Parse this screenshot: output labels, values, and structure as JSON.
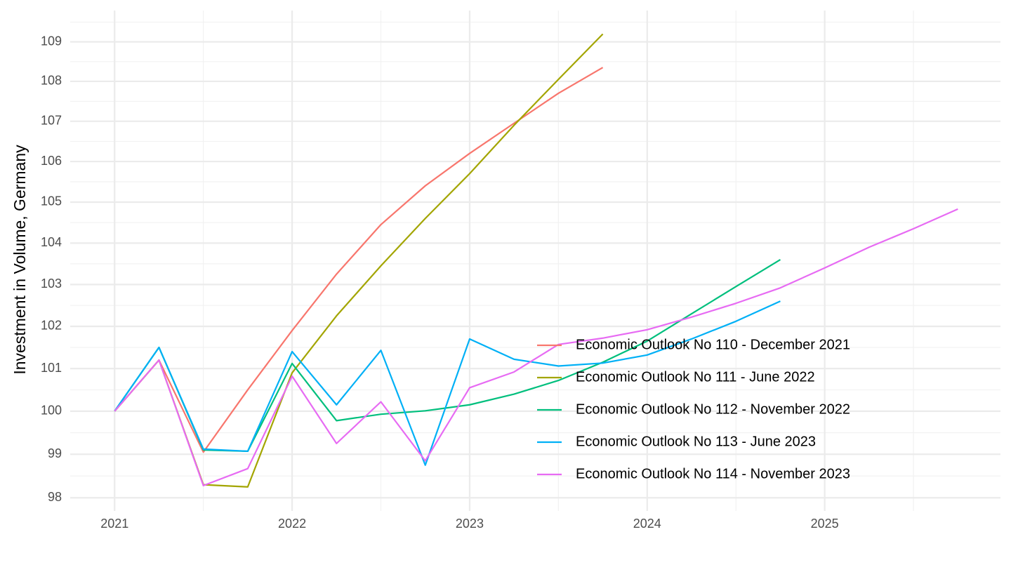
{
  "chart_data": {
    "type": "line",
    "y_label": "Investment in Volume, Germany",
    "x": [
      2021,
      2021.25,
      2021.5,
      2021.75,
      2022,
      2022.25,
      2022.5,
      2022.75,
      2023,
      2023.25,
      2023.5,
      2023.75,
      2024,
      2024.25,
      2024.5,
      2024.75,
      2025,
      2025.25,
      2025.5,
      2025.75
    ],
    "xlim": [
      2020.75,
      2025.99
    ],
    "xticks": [
      2021,
      2022,
      2023,
      2024,
      2025
    ],
    "ylim": [
      97.7,
      109.8
    ],
    "yticks": [
      98,
      99,
      100,
      101,
      102,
      103,
      104,
      105,
      106,
      107,
      108,
      109
    ],
    "log_y": true,
    "grid": true,
    "legend_position": "inside",
    "series": [
      {
        "name": "Economic Outlook No 110 - December 2021",
        "color": "#F8766D",
        "values": [
          100,
          101.2,
          99.05,
          100.5,
          101.9,
          103.25,
          104.45,
          105.4,
          106.2,
          106.95,
          107.7,
          108.35,
          null,
          null,
          null,
          null,
          null,
          null,
          null,
          null
        ]
      },
      {
        "name": "Economic Outlook No 111 - June 2022",
        "color": "#A3A500",
        "values": [
          100,
          101.2,
          98.3,
          98.25,
          100.9,
          102.25,
          103.45,
          104.6,
          105.7,
          106.9,
          108.05,
          109.2,
          null,
          null,
          null,
          null,
          null,
          null,
          null,
          null
        ]
      },
      {
        "name": "Economic Outlook No 112 - November 2022",
        "color": "#00BF7D",
        "values": [
          100,
          101.5,
          99.1,
          99.07,
          101.12,
          99.78,
          99.93,
          100.01,
          100.15,
          100.4,
          100.72,
          101.15,
          101.65,
          102.3,
          102.95,
          103.6,
          null,
          null,
          null,
          null
        ]
      },
      {
        "name": "Economic Outlook No 113 - June 2023",
        "color": "#00B0F6",
        "values": [
          100,
          101.5,
          99.12,
          99.07,
          101.4,
          100.15,
          101.43,
          98.75,
          101.7,
          101.22,
          101.06,
          101.13,
          101.32,
          101.7,
          102.12,
          102.6,
          null,
          null,
          null,
          null
        ]
      },
      {
        "name": "Economic Outlook No 114 - November 2023",
        "color": "#E76BF3",
        "values": [
          100,
          101.2,
          98.28,
          98.67,
          100.82,
          99.25,
          100.22,
          98.85,
          100.55,
          100.92,
          101.57,
          101.72,
          101.92,
          102.22,
          102.55,
          102.92,
          103.4,
          103.9,
          104.35,
          104.83
        ]
      }
    ]
  }
}
